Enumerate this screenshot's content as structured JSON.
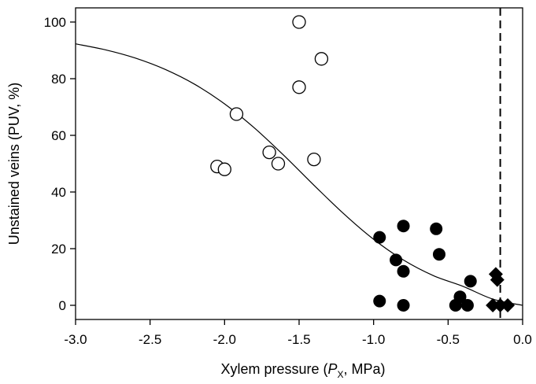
{
  "chart_data": {
    "type": "scatter",
    "xlabel": {
      "prefix": "Xylem pressure (",
      "symbol": "P",
      "subscript": "X",
      "suffix": ", MPa)"
    },
    "ylabel": "Unstained veins (PUV, %)",
    "xlim": [
      -3.0,
      0.0
    ],
    "ylim": [
      -5,
      105
    ],
    "x_ticks": [
      -3.0,
      -2.5,
      -2.0,
      -1.5,
      -1.0,
      -0.5,
      0.0
    ],
    "x_tick_labels": [
      "-3.0",
      "-2.5",
      "-2.0",
      "-1.5",
      "-1.0",
      "-0.5",
      "0.0"
    ],
    "y_ticks": [
      0,
      20,
      40,
      60,
      80,
      100
    ],
    "y_tick_labels": [
      "0",
      "20",
      "40",
      "60",
      "80",
      "100"
    ],
    "vertical_reference_line": {
      "x": -0.15,
      "style": "dashed"
    },
    "series": [
      {
        "marker": "open-circle",
        "color": "#000000",
        "points": [
          [
            -2.05,
            49
          ],
          [
            -2.0,
            48
          ],
          [
            -1.92,
            67.5
          ],
          [
            -1.7,
            54
          ],
          [
            -1.64,
            50
          ],
          [
            -1.5,
            100
          ],
          [
            -1.5,
            77
          ],
          [
            -1.35,
            87
          ],
          [
            -1.4,
            51.5
          ]
        ]
      },
      {
        "marker": "filled-circle",
        "color": "#000000",
        "points": [
          [
            -0.96,
            24
          ],
          [
            -0.96,
            1.5
          ],
          [
            -0.85,
            16
          ],
          [
            -0.8,
            28
          ],
          [
            -0.8,
            12
          ],
          [
            -0.8,
            0
          ],
          [
            -0.58,
            27
          ],
          [
            -0.56,
            18
          ],
          [
            -0.45,
            0
          ],
          [
            -0.42,
            3
          ],
          [
            -0.37,
            0
          ],
          [
            -0.35,
            8.5
          ]
        ]
      },
      {
        "marker": "filled-diamond",
        "color": "#000000",
        "points": [
          [
            -0.18,
            11
          ],
          [
            -0.17,
            9
          ],
          [
            -0.2,
            0
          ],
          [
            -0.15,
            0
          ],
          [
            -0.1,
            0
          ]
        ]
      }
    ],
    "fit_curve": {
      "type": "sigmoid",
      "points": [
        [
          -3.0,
          92.3
        ],
        [
          -2.8,
          90.2
        ],
        [
          -2.6,
          87.3
        ],
        [
          -2.4,
          83.3
        ],
        [
          -2.2,
          78.0
        ],
        [
          -2.0,
          71.1
        ],
        [
          -1.8,
          62.6
        ],
        [
          -1.6,
          52.8
        ],
        [
          -1.4,
          42.4
        ],
        [
          -1.2,
          32.3
        ],
        [
          -1.0,
          23.3
        ],
        [
          -0.8,
          16.0
        ],
        [
          -0.6,
          10.5
        ],
        [
          -0.4,
          6.7
        ],
        [
          -0.2,
          2.2
        ],
        [
          0.0,
          0.0
        ]
      ]
    }
  }
}
